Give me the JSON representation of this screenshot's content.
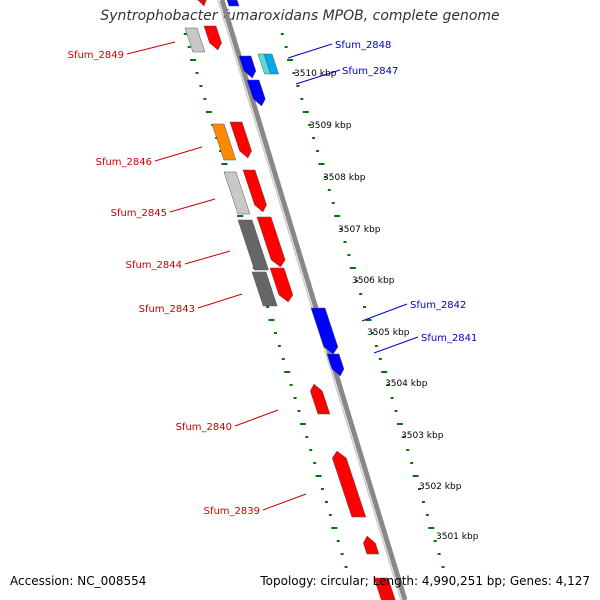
{
  "title": "Syntrophobacter fumaroxidans MPOB, complete genome",
  "accession": "Accession: NC_008554",
  "summary": "Topology: circular; Length: 4,990,251 bp; Genes: 4,127",
  "colors": {
    "forward": "#ff0000",
    "reverse": "#0000ff",
    "backbone": "#888888",
    "ticks": "#007700",
    "label_forward": "#cc0000",
    "label_reverse": "#0000cc"
  },
  "chart_data": {
    "type": "diagram",
    "scale_labels": [
      "3510 kbp",
      "3509 kbp",
      "3508 kbp",
      "3507 kbp",
      "3506 kbp",
      "3505 kbp",
      "3504 kbp",
      "3503 kbp",
      "3502 kbp",
      "3501 kbp"
    ],
    "gene_labels": [
      {
        "name": "Sfum_2849",
        "strand": "forward"
      },
      {
        "name": "Sfum_2848",
        "strand": "reverse"
      },
      {
        "name": "Sfum_2847",
        "strand": "reverse"
      },
      {
        "name": "Sfum_2846",
        "strand": "forward"
      },
      {
        "name": "Sfum_2845",
        "strand": "forward"
      },
      {
        "name": "Sfum_2844",
        "strand": "forward"
      },
      {
        "name": "Sfum_2843",
        "strand": "forward"
      },
      {
        "name": "Sfum_2842",
        "strand": "reverse"
      },
      {
        "name": "Sfum_2841",
        "strand": "reverse"
      },
      {
        "name": "Sfum_2840",
        "strand": "forward"
      },
      {
        "name": "Sfum_2839",
        "strand": "forward"
      }
    ]
  }
}
